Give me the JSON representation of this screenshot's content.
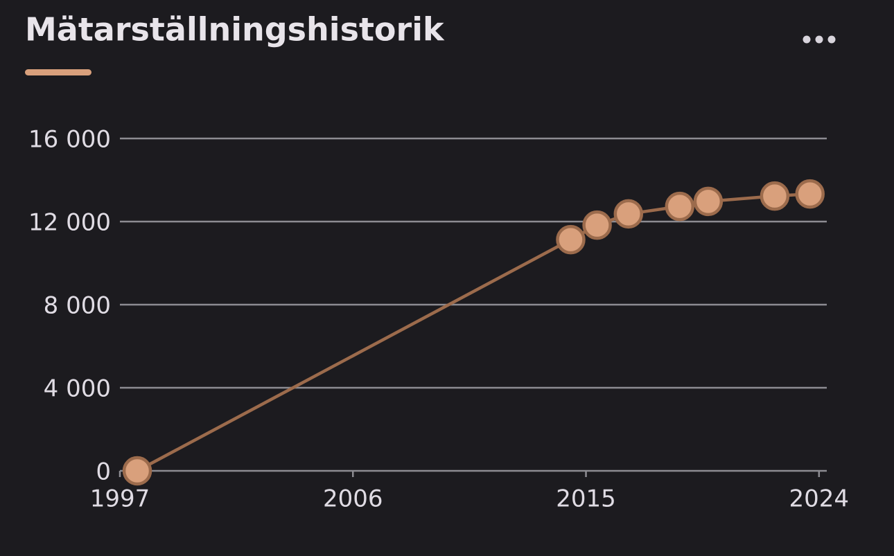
{
  "chart_data": {
    "type": "line",
    "title": "Mätarställningshistorik",
    "x": [
      1997.67,
      2014.41,
      2015.43,
      2016.64,
      2018.62,
      2019.72,
      2022.29,
      2023.65
    ],
    "series": [
      {
        "color": "#9c6b4c",
        "values": [
          0,
          11130,
          11830,
          12370,
          12730,
          12970,
          13230,
          13330
        ]
      }
    ],
    "marker_color": "#d9a07c",
    "xlim": [
      1997,
      2024.3
    ],
    "xticks": [
      1997,
      2006,
      2015,
      2024
    ],
    "ylim": [
      0,
      16000
    ],
    "yticks": [
      {
        "value": 0,
        "label": "0"
      },
      {
        "value": 4000,
        "label": "4 000"
      },
      {
        "value": 8000,
        "label": "8 000"
      },
      {
        "value": 12000,
        "label": "12 000"
      },
      {
        "value": 16000,
        "label": "16 000"
      }
    ],
    "grid": true
  }
}
